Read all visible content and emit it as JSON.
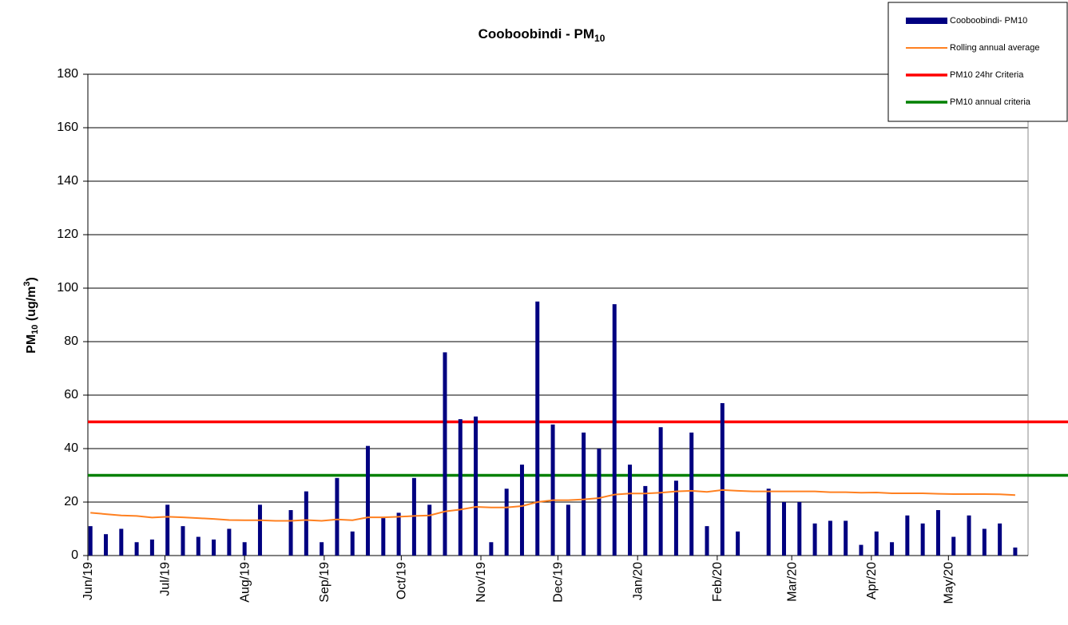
{
  "chart_data": {
    "type": "bar",
    "title": "Cooboobindi  - PM",
    "title_subscript": "10",
    "y_label": [
      "PM",
      "10",
      " (ug/m",
      "3",
      ")"
    ],
    "x": [
      1,
      7,
      13,
      19,
      25,
      31,
      37,
      43,
      49,
      55,
      61,
      67,
      73,
      79,
      85,
      91,
      97,
      103,
      109,
      115,
      121,
      127,
      133,
      139,
      145,
      151,
      157,
      163,
      169,
      175,
      181,
      187,
      193,
      199,
      205,
      211,
      217,
      223,
      229,
      235,
      241,
      247,
      253,
      259,
      265,
      271,
      277,
      283,
      289,
      295,
      301,
      307,
      313,
      319,
      325,
      331,
      337,
      343,
      349,
      355,
      361
    ],
    "xlim": [
      0,
      366
    ],
    "xticks": [
      {
        "value": 0,
        "label": "Jun/19"
      },
      {
        "value": 30,
        "label": "Jul/19"
      },
      {
        "value": 61,
        "label": "Aug/19"
      },
      {
        "value": 92,
        "label": "Sep/19"
      },
      {
        "value": 122,
        "label": "Oct/19"
      },
      {
        "value": 153,
        "label": "Nov/19"
      },
      {
        "value": 183,
        "label": "Dec/19"
      },
      {
        "value": 214,
        "label": "Jan/20"
      },
      {
        "value": 245,
        "label": "Feb/20"
      },
      {
        "value": 274,
        "label": "Mar/20"
      },
      {
        "value": 305,
        "label": "Apr/20"
      },
      {
        "value": 335,
        "label": "May/20"
      }
    ],
    "ylim": [
      0,
      180
    ],
    "yticks": [
      0,
      20,
      40,
      60,
      80,
      100,
      120,
      140,
      160,
      180
    ],
    "grid": true,
    "series": [
      {
        "name": "Cooboobindi- PM10",
        "color": "#000080",
        "kind": "bar",
        "values": [
          11,
          8,
          10,
          5,
          6,
          19,
          11,
          7,
          6,
          10,
          5,
          19,
          null,
          17,
          24,
          5,
          29,
          9,
          41,
          14,
          16,
          29,
          19,
          76,
          51,
          52,
          5,
          25,
          34,
          95,
          49,
          19,
          46,
          40,
          94,
          34,
          26,
          48,
          28,
          46,
          11,
          57,
          9,
          null,
          25,
          20,
          20,
          12,
          13,
          13,
          4,
          9,
          5,
          15,
          12,
          17,
          7,
          15,
          10,
          12,
          3
        ]
      },
      {
        "name": "Rolling annual average",
        "color": "#ff8020",
        "kind": "line",
        "values": [
          16,
          15.5,
          15,
          14.8,
          14.2,
          14.5,
          14.3,
          14,
          13.7,
          13.3,
          13.2,
          13.2,
          13,
          13,
          13.3,
          13,
          13.5,
          13.2,
          14.3,
          14.3,
          14.5,
          14.8,
          15,
          16.5,
          17.2,
          18.2,
          18,
          18,
          18.5,
          20,
          20.7,
          20.7,
          21,
          21.5,
          22.8,
          23.2,
          23.2,
          23.5,
          24,
          24.2,
          23.8,
          24.5,
          24.2,
          24,
          24,
          24,
          24,
          24,
          23.7,
          23.7,
          23.5,
          23.6,
          23.3,
          23.3,
          23.3,
          23.1,
          23,
          23,
          23,
          22.9,
          22.6
        ]
      }
    ],
    "reference_lines": [
      {
        "name": "PM10 24hr Criteria",
        "color": "#ff0000",
        "value": 50
      },
      {
        "name": "PM10 annual criteria",
        "color": "#008000",
        "value": 30
      }
    ],
    "legend": "top-right"
  }
}
